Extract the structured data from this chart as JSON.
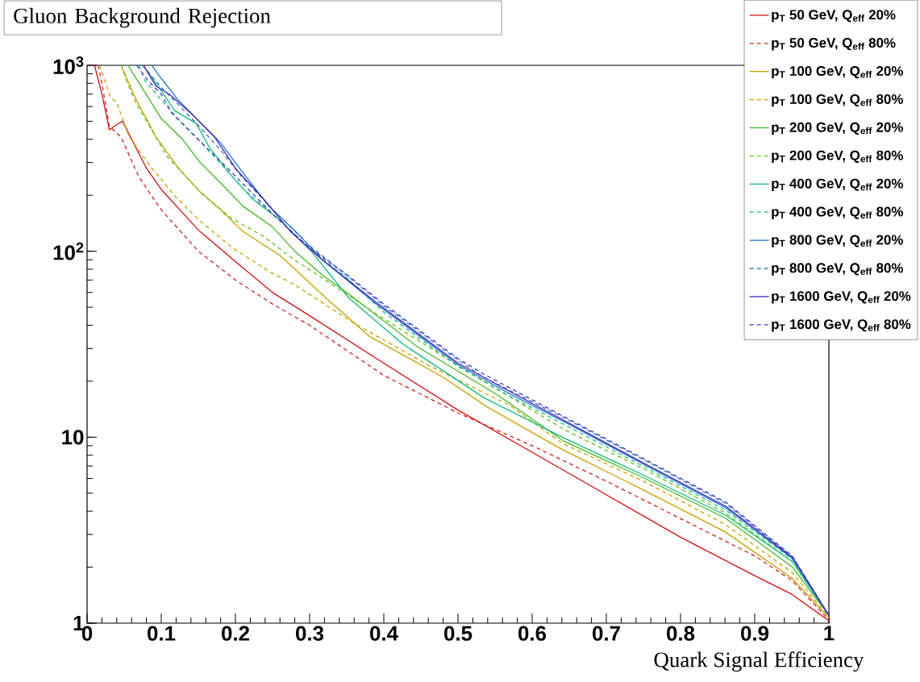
{
  "chart_data": {
    "type": "line",
    "title": "Gluon Background Rejection",
    "xlabel": "Quark Signal Efficiency",
    "xlim": [
      0,
      1
    ],
    "ylim": [
      1,
      1000
    ],
    "log": "y",
    "legend": "top right",
    "xticks": [
      0,
      0.1,
      0.2,
      0.3,
      0.4,
      0.5,
      0.6,
      0.7,
      0.8,
      0.9,
      1
    ],
    "yticks": [
      1,
      10,
      {
        "value": 100,
        "label": "10$^{2}$"
      },
      {
        "value": 1000,
        "label": "10$^{3}$"
      }
    ],
    "series": [
      {
        "name": "p$_{T}$ 50 GeV,   Q$_{eff}$ 20%",
        "color": "#cc1111",
        "line_style": "solid",
        "x": [
          0.01,
          0.02,
          0.03,
          0.04,
          0.048,
          0.06,
          0.08,
          0.1,
          0.15,
          0.2,
          0.25,
          0.3,
          0.4,
          0.5,
          0.6,
          0.7,
          0.8,
          0.9,
          0.95,
          1.0
        ],
        "values": [
          1000,
          700,
          450,
          480,
          500,
          400,
          280,
          215,
          130,
          88,
          60,
          45,
          25,
          14,
          8.3,
          4.9,
          2.9,
          1.8,
          1.43,
          1.03
        ]
      },
      {
        "name": "p$_{T}$ 50 GeV,   Q$_{eff}$ 80%",
        "color": "#cc2222",
        "line_style": "dashed",
        "x": [
          0.015,
          0.02,
          0.03,
          0.046,
          0.07,
          0.1,
          0.15,
          0.2,
          0.25,
          0.3,
          0.4,
          0.5,
          0.6,
          0.7,
          0.8,
          0.9,
          0.95,
          1.0
        ],
        "values": [
          1000,
          800,
          470,
          410,
          250,
          167,
          100,
          70,
          52,
          40,
          21.5,
          13.5,
          9.0,
          5.8,
          3.65,
          2.3,
          1.7,
          1.04
        ]
      },
      {
        "name": "p$_{T}$ 100 GeV,   Q$_{eff}$ 20%",
        "color": "#c8a000",
        "line_style": "solid",
        "x": [
          0.046,
          0.064,
          0.093,
          0.122,
          0.151,
          0.18,
          0.21,
          0.26,
          0.32,
          0.38,
          0.48,
          0.54,
          0.64,
          0.75,
          0.86,
          0.95,
          1.0
        ],
        "values": [
          1000,
          680,
          411,
          284,
          211,
          167,
          128,
          95,
          57,
          35,
          21,
          14.5,
          8.6,
          5.2,
          3.1,
          1.75,
          1.07
        ]
      },
      {
        "name": "p$_{T}$ 100 GeV,   Q$_{eff}$ 80%",
        "color": "#c8a000",
        "line_style": "dashed",
        "x": [
          0.017,
          0.031,
          0.04,
          0.057,
          0.086,
          0.118,
          0.151,
          0.195,
          0.245,
          0.28,
          0.36,
          0.46,
          0.57,
          0.64,
          0.75,
          0.86,
          0.95,
          1.0
        ],
        "values": [
          1000,
          680,
          630,
          411,
          284,
          199,
          147,
          105,
          78,
          66,
          41,
          24.4,
          14.8,
          9.3,
          5.8,
          3.4,
          1.88,
          1.08
        ]
      },
      {
        "name": "p$_{T}$ 200 GeV,   Q$_{eff}$ 20%",
        "color": "#44b822",
        "line_style": "solid",
        "x": [
          0.055,
          0.075,
          0.1,
          0.129,
          0.151,
          0.18,
          0.21,
          0.25,
          0.28,
          0.32,
          0.35,
          0.445,
          0.553,
          0.643,
          0.752,
          0.861,
          0.951,
          1.0
        ],
        "values": [
          1000,
          748,
          517,
          399,
          305,
          233,
          175,
          135,
          100,
          73,
          60,
          30.7,
          16.9,
          9.5,
          6.0,
          3.66,
          2.0,
          1.1
        ]
      },
      {
        "name": "p$_{T}$ 200 GeV,   Q$_{eff}$ 80%",
        "color": "#66c022",
        "line_style": "dashed",
        "x": [
          0.046,
          0.053,
          0.067,
          0.082,
          0.107,
          0.154,
          0.195,
          0.238,
          0.281,
          0.31,
          0.39,
          0.499,
          0.535,
          0.643,
          0.752,
          0.861,
          0.951,
          1.0
        ],
        "values": [
          1000,
          828,
          613,
          487,
          327,
          205,
          150,
          120,
          89,
          75,
          46,
          24.4,
          20,
          11,
          6.7,
          3.9,
          2.14,
          1.1
        ]
      },
      {
        "name": "p$_{T}$ 400 GeV,   Q$_{eff}$ 20%",
        "color": "#11bb77",
        "line_style": "solid",
        "x": [
          0.075,
          0.096,
          0.118,
          0.147,
          0.165,
          0.19,
          0.223,
          0.26,
          0.303,
          0.353,
          0.426,
          0.535,
          0.643,
          0.752,
          0.861,
          0.951,
          1.0
        ],
        "values": [
          1000,
          771,
          571,
          487,
          361,
          268,
          191,
          147,
          99,
          56,
          31.6,
          16.3,
          9.9,
          6.2,
          3.8,
          2.14,
          1.1
        ]
      },
      {
        "name": "p$_{T}$ 400 GeV,   Q$_{eff}$ 80%",
        "color": "#22bb88",
        "line_style": "dashed",
        "x": [
          0.07,
          0.078,
          0.096,
          0.122,
          0.147,
          0.18,
          0.209,
          0.252,
          0.299,
          0.35,
          0.4,
          0.5,
          0.571,
          0.643,
          0.752,
          0.861,
          0.951,
          1.0
        ],
        "values": [
          1000,
          828,
          680,
          517,
          411,
          296,
          219,
          156,
          105,
          72,
          47,
          24,
          16.5,
          11.7,
          6.9,
          4.05,
          2.2,
          1.1
        ]
      },
      {
        "name": "p$_{T}$ 800 GeV,   Q$_{eff}$ 20%",
        "color": "#1f77c8",
        "line_style": "solid",
        "x": [
          0.087,
          0.1,
          0.122,
          0.151,
          0.18,
          0.209,
          0.245,
          0.281,
          0.317,
          0.39,
          0.5,
          0.571,
          0.643,
          0.752,
          0.861,
          0.951,
          1.0
        ],
        "values": [
          1000,
          850,
          657,
          500,
          383,
          268,
          175,
          128,
          90,
          52,
          24.5,
          17,
          12.1,
          7.1,
          4.17,
          2.22,
          1.1
        ]
      },
      {
        "name": "p$_{T}$ 800 GeV,   Q$_{eff}$ 80%",
        "color": "#2a78b8",
        "line_style": "dashed",
        "x": [
          0.075,
          0.1,
          0.122,
          0.151,
          0.18,
          0.209,
          0.252,
          0.299,
          0.35,
          0.4,
          0.5,
          0.535,
          0.643,
          0.752,
          0.861,
          0.951,
          1.0
        ],
        "values": [
          1000,
          760,
          620,
          470,
          350,
          250,
          165,
          108,
          74,
          51,
          26,
          21,
          12.7,
          7.5,
          4.4,
          2.27,
          1.1
        ]
      },
      {
        "name": "p$_{T}$ 1600 GeV,   Q$_{eff}$ 20%",
        "color": "#4422bb",
        "line_style": "solid",
        "x": [
          0.076,
          0.093,
          0.111,
          0.143,
          0.172,
          0.201,
          0.238,
          0.274,
          0.314,
          0.39,
          0.5,
          0.571,
          0.643,
          0.752,
          0.861,
          0.951,
          1.0
        ],
        "values": [
          1000,
          771,
          698,
          538,
          411,
          276,
          191,
          128,
          92,
          53,
          25,
          17.5,
          12.3,
          7.2,
          4.25,
          2.25,
          1.1
        ]
      },
      {
        "name": "p$_{T}$ 1600 GeV,   Q$_{eff}$ 80%",
        "color": "#4433cc",
        "line_style": "dashed",
        "x": [
          0.067,
          0.082,
          0.1,
          0.114,
          0.143,
          0.172,
          0.209,
          0.252,
          0.299,
          0.35,
          0.4,
          0.5,
          0.535,
          0.643,
          0.752,
          0.861,
          0.951,
          1.0
        ],
        "values": [
          1000,
          828,
          698,
          555,
          424,
          327,
          233,
          156,
          105,
          75,
          52,
          26.5,
          21.8,
          12.9,
          7.6,
          4.47,
          2.29,
          1.1
        ]
      }
    ]
  }
}
